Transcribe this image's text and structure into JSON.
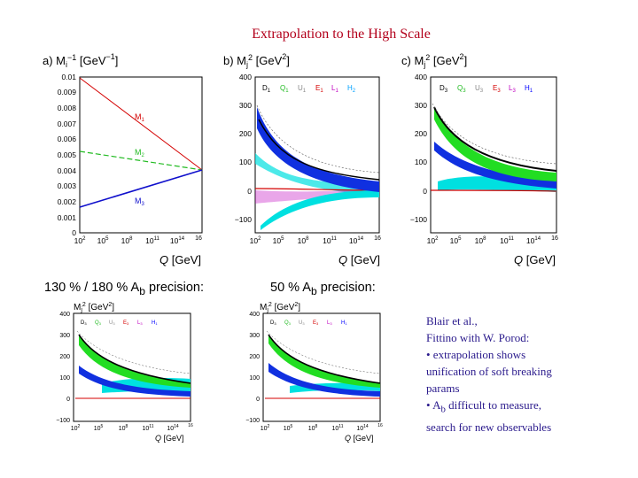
{
  "title": "Extrapolation to the High Scale",
  "captions": {
    "left": "130 % / 180 % A",
    "left_sub": "b",
    "left_tail": " precision:",
    "right": "50 % A",
    "right_sub": "b",
    "right_tail": " precision:"
  },
  "notes": {
    "line1": "Blair et al.,",
    "line2": "Fittino with W. Porod:",
    "line3": "• extrapolation shows",
    "line4": "unification of soft breaking",
    "line5": "params",
    "line6a": "• A",
    "line6sub": "b",
    "line6b": " difficult to measure,",
    "line7": "search for new observables"
  },
  "chart_data": [
    {
      "type": "line",
      "panel": "a)",
      "ylabel": "M_i^-1 [GeV^-1]",
      "xlabel": "Q [GeV]",
      "x_scale": "log",
      "ylim": [
        0,
        0.01
      ],
      "yticks": [
        "0.01",
        "0.009",
        "0.008",
        "0.007",
        "0.006",
        "0.005",
        "0.004",
        "0.003",
        "0.002",
        "0.001",
        "0"
      ],
      "xticks": [
        "10^2",
        "10^5",
        "10^8",
        "10^11",
        "10^14",
        "10^16"
      ],
      "series": [
        {
          "name": "M1",
          "color": "#d40000",
          "x": [
            100,
            2e+16
          ],
          "y": [
            0.0099,
            0.0041
          ]
        },
        {
          "name": "M2",
          "color": "#22bb22",
          "x": [
            100,
            2e+16
          ],
          "y": [
            0.0052,
            0.0041
          ]
        },
        {
          "name": "M3",
          "color": "#1010cc",
          "x": [
            100,
            2e+16
          ],
          "y": [
            0.0017,
            0.0041
          ]
        }
      ]
    },
    {
      "type": "area",
      "panel": "b)",
      "ylabel": "M_j^2 [GeV^2]",
      "xlabel": "Q [GeV]",
      "x_scale": "log",
      "ylim": [
        -150,
        400
      ],
      "yticks": [
        "400",
        "300",
        "200",
        "100",
        "0",
        "−100"
      ],
      "xticks": [
        "10^2",
        "10^5",
        "10^8",
        "10^11",
        "10^14",
        "10^16"
      ],
      "legend": [
        "D1",
        "Q1",
        "U1",
        "E1",
        "L1",
        "H2"
      ],
      "legend_colors": [
        "#000000",
        "#22bb22",
        "#888888",
        "#d40000",
        "#c000c0",
        "#00a0ff"
      ]
    },
    {
      "type": "area",
      "panel": "c)",
      "ylabel": "M_j^2 [GeV^2]",
      "xlabel": "Q [GeV]",
      "x_scale": "log",
      "ylim": [
        -150,
        400
      ],
      "yticks": [
        "400",
        "300",
        "200",
        "100",
        "0",
        "−100"
      ],
      "xticks": [
        "10^2",
        "10^5",
        "10^8",
        "10^11",
        "10^14",
        "10^16"
      ],
      "legend": [
        "D3",
        "Q3",
        "U3",
        "E3",
        "L3",
        "H1"
      ],
      "legend_colors": [
        "#000000",
        "#22bb22",
        "#888888",
        "#d40000",
        "#c000c0",
        "#0000ff"
      ]
    },
    {
      "type": "area",
      "panel": "bottom-left",
      "ylabel": "M_j^2 [GeV^2]",
      "xlabel": "Q [GeV]",
      "x_scale": "log",
      "ylim": [
        -100,
        400
      ],
      "yticks": [
        "400",
        "300",
        "200",
        "100",
        "0",
        "−100"
      ],
      "xticks": [
        "10^2",
        "10^5",
        "10^8",
        "10^11",
        "10^14",
        "10^16"
      ],
      "legend": [
        "D3",
        "Q3",
        "U3",
        "E3",
        "L3",
        "H1"
      ],
      "legend_colors": [
        "#000000",
        "#22bb22",
        "#888888",
        "#d40000",
        "#c000c0",
        "#0000ff"
      ]
    },
    {
      "type": "area",
      "panel": "bottom-right",
      "ylabel": "M_j^2 [GeV^2]",
      "xlabel": "Q [GeV]",
      "x_scale": "log",
      "ylim": [
        -100,
        400
      ],
      "yticks": [
        "400",
        "300",
        "200",
        "100",
        "0",
        "−100"
      ],
      "xticks": [
        "10^2",
        "10^5",
        "10^8",
        "10^11",
        "10^14",
        "10^16"
      ],
      "legend": [
        "D3",
        "Q3",
        "U3",
        "E3",
        "L3",
        "H1"
      ],
      "legend_colors": [
        "#000000",
        "#22bb22",
        "#888888",
        "#d40000",
        "#c000c0",
        "#0000ff"
      ]
    }
  ]
}
